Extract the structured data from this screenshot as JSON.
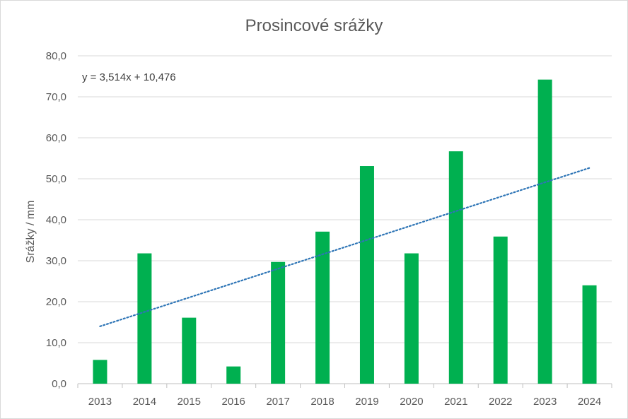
{
  "chart_data": {
    "type": "bar",
    "title": "Prosincové srážky",
    "xlabel": "",
    "ylabel": "Srážky / mm",
    "categories": [
      "2013",
      "2014",
      "2015",
      "2016",
      "2017",
      "2018",
      "2019",
      "2020",
      "2021",
      "2022",
      "2023",
      "2024"
    ],
    "values": [
      5.8,
      31.8,
      16.1,
      4.2,
      29.7,
      37.1,
      53.1,
      31.8,
      56.7,
      35.9,
      74.2,
      24.0
    ],
    "ylim": [
      0,
      80
    ],
    "yticks": [
      "0,0",
      "10,0",
      "20,0",
      "30,0",
      "40,0",
      "50,0",
      "60,0",
      "70,0",
      "80,0"
    ],
    "grid": true,
    "bar_color": "#00b050",
    "trendline": {
      "equation": "y = 3,514x + 10,476",
      "slope": 3.514,
      "intercept": 10.476,
      "color": "#2e75b6",
      "style": "dotted"
    }
  }
}
